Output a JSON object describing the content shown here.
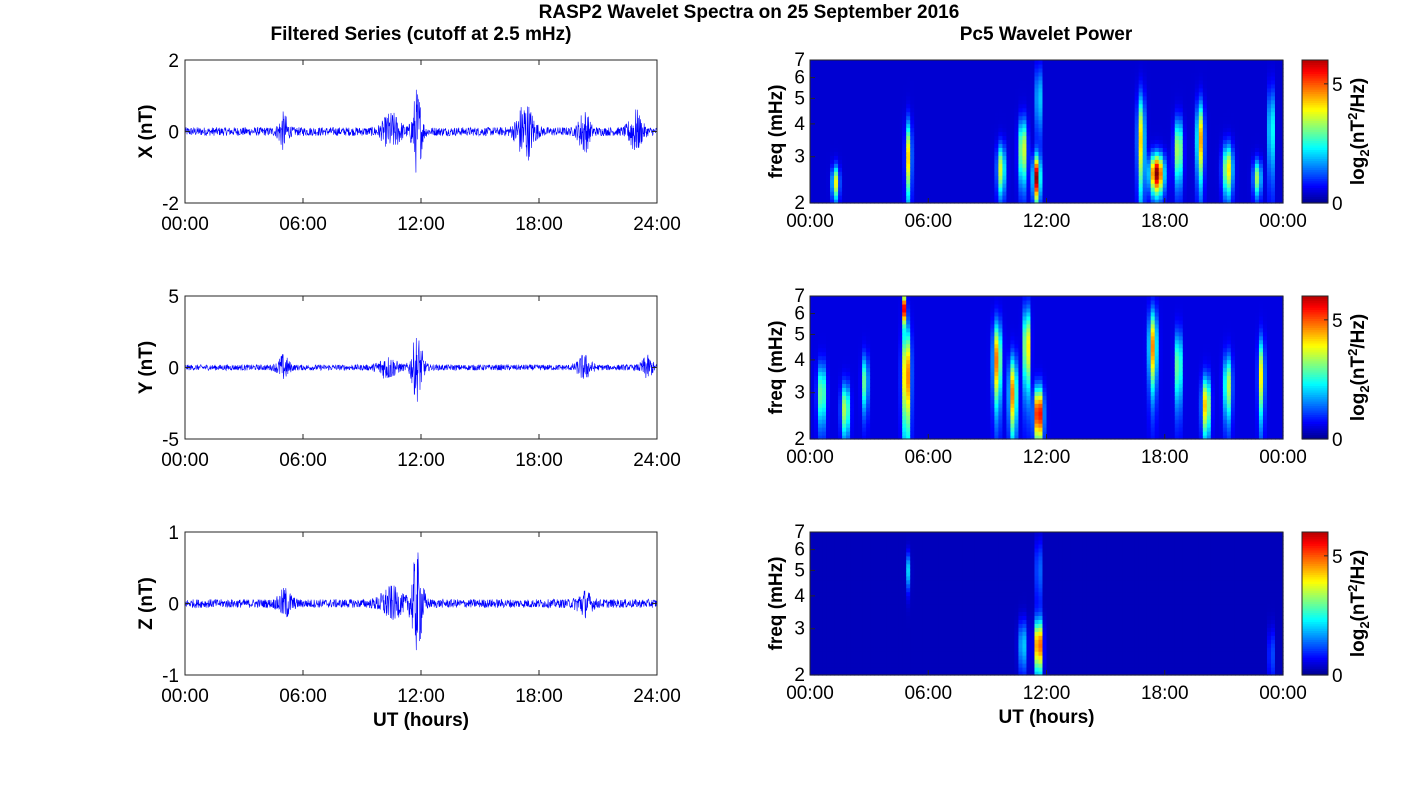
{
  "title": "RASP2 Wavelet Spectra on 25 September 2016",
  "colors": {
    "trace": "#0000ff",
    "frame": "#262626",
    "text": "#000000"
  },
  "chart_data": [
    {
      "type": "line",
      "title": "Filtered Series (cutoff at 2.5 mHz)",
      "ylabel": "X (nT)",
      "xlabel": "",
      "xlim": [
        0,
        24
      ],
      "ylim": [
        -2,
        2
      ],
      "xticks": [
        "00:00",
        "06:00",
        "12:00",
        "18:00",
        "24:00"
      ],
      "yticks": [
        "2",
        "0",
        "-2"
      ],
      "noise_amplitude_nT": 0.12,
      "bursts": [
        {
          "t": 5.0,
          "amp": 0.45,
          "width": 0.25
        },
        {
          "t": 10.5,
          "amp": 0.45,
          "width": 0.5
        },
        {
          "t": 11.8,
          "amp": 1.15,
          "width": 0.25
        },
        {
          "t": 17.3,
          "amp": 0.8,
          "width": 0.45
        },
        {
          "t": 20.3,
          "amp": 0.55,
          "width": 0.3
        },
        {
          "t": 22.9,
          "amp": 0.55,
          "width": 0.35
        }
      ]
    },
    {
      "type": "line",
      "title": "",
      "ylabel": "Y (nT)",
      "xlabel": "",
      "xlim": [
        0,
        24
      ],
      "ylim": [
        -5,
        5
      ],
      "xticks": [
        "00:00",
        "06:00",
        "12:00",
        "18:00",
        "24:00"
      ],
      "yticks": [
        "5",
        "0",
        "-5"
      ],
      "noise_amplitude_nT": 0.2,
      "bursts": [
        {
          "t": 5.0,
          "amp": 0.8,
          "width": 0.3
        },
        {
          "t": 10.3,
          "amp": 0.7,
          "width": 0.5
        },
        {
          "t": 11.8,
          "amp": 2.2,
          "width": 0.3
        },
        {
          "t": 20.3,
          "amp": 0.8,
          "width": 0.35
        },
        {
          "t": 23.5,
          "amp": 0.7,
          "width": 0.3
        }
      ]
    },
    {
      "type": "line",
      "title": "",
      "ylabel": "Z (nT)",
      "xlabel": "UT (hours)",
      "xlim": [
        0,
        24
      ],
      "ylim": [
        -1,
        1
      ],
      "xticks": [
        "00:00",
        "06:00",
        "12:00",
        "18:00",
        "24:00"
      ],
      "yticks": [
        "1",
        "0",
        "-1"
      ],
      "noise_amplitude_nT": 0.06,
      "bursts": [
        {
          "t": 5.1,
          "amp": 0.18,
          "width": 0.35
        },
        {
          "t": 10.5,
          "amp": 0.2,
          "width": 0.6
        },
        {
          "t": 11.8,
          "amp": 0.68,
          "width": 0.3
        },
        {
          "t": 20.3,
          "amp": 0.15,
          "width": 0.4
        }
      ]
    },
    {
      "type": "heatmap",
      "title": "Pc5 Wavelet Power",
      "ylabel": "freq (mHz)",
      "xlabel": "",
      "xlim": [
        0,
        24
      ],
      "ylim": [
        2,
        7
      ],
      "yscale": "log",
      "xticks": [
        "00:00",
        "06:00",
        "12:00",
        "18:00",
        "00:00"
      ],
      "yticks": [
        "7",
        "6",
        "5",
        "4",
        "3",
        "2"
      ],
      "colorbar": {
        "label": "log2(nT2/Hz)",
        "range": [
          0,
          6
        ],
        "ticks": [
          "5",
          "0"
        ],
        "colormap": "jet"
      },
      "background_level": 0.4,
      "blobs": [
        {
          "t": 1.3,
          "f": 2.4,
          "sf": 0.35,
          "st": 0.18,
          "v": 3.5
        },
        {
          "t": 5.0,
          "f": 3.0,
          "sf": 1.0,
          "st": 0.15,
          "v": 3.8
        },
        {
          "t": 9.7,
          "f": 2.7,
          "sf": 0.6,
          "st": 0.2,
          "v": 3.4
        },
        {
          "t": 10.8,
          "f": 3.2,
          "sf": 0.9,
          "st": 0.2,
          "v": 3.8
        },
        {
          "t": 11.5,
          "f": 2.5,
          "sf": 0.5,
          "st": 0.18,
          "v": 5.8
        },
        {
          "t": 11.6,
          "f": 5.0,
          "sf": 1.5,
          "st": 0.1,
          "v": 3.8
        },
        {
          "t": 16.8,
          "f": 3.5,
          "sf": 1.5,
          "st": 0.18,
          "v": 3.8
        },
        {
          "t": 17.6,
          "f": 2.6,
          "sf": 0.45,
          "st": 0.35,
          "v": 6.0
        },
        {
          "t": 18.7,
          "f": 3.2,
          "sf": 0.9,
          "st": 0.2,
          "v": 3.6
        },
        {
          "t": 19.8,
          "f": 3.5,
          "sf": 1.2,
          "st": 0.18,
          "v": 4.2
        },
        {
          "t": 21.2,
          "f": 2.7,
          "sf": 0.6,
          "st": 0.25,
          "v": 3.8
        },
        {
          "t": 22.7,
          "f": 2.5,
          "sf": 0.4,
          "st": 0.2,
          "v": 3.0
        },
        {
          "t": 23.4,
          "f": 3.8,
          "sf": 1.5,
          "st": 0.12,
          "v": 3.4
        }
      ]
    },
    {
      "type": "heatmap",
      "title": "",
      "ylabel": "freq (mHz)",
      "xlabel": "",
      "xlim": [
        0,
        24
      ],
      "ylim": [
        2,
        7
      ],
      "yscale": "log",
      "xticks": [
        "00:00",
        "06:00",
        "12:00",
        "18:00",
        "00:00"
      ],
      "yticks": [
        "7",
        "6",
        "5",
        "4",
        "3",
        "2"
      ],
      "colorbar": {
        "label": "log2(nT2/Hz)",
        "range": [
          0,
          6
        ],
        "ticks": [
          "5",
          "0"
        ],
        "colormap": "jet"
      },
      "background_level": 0.5,
      "blobs": [
        {
          "t": 0.6,
          "f": 3.0,
          "sf": 0.8,
          "st": 0.2,
          "v": 3.0
        },
        {
          "t": 1.8,
          "f": 2.6,
          "sf": 0.6,
          "st": 0.2,
          "v": 3.3
        },
        {
          "t": 2.8,
          "f": 3.3,
          "sf": 0.8,
          "st": 0.15,
          "v": 2.8
        },
        {
          "t": 4.9,
          "f": 3.5,
          "sf": 1.6,
          "st": 0.2,
          "v": 5.0
        },
        {
          "t": 4.8,
          "f": 6.3,
          "sf": 0.8,
          "st": 0.1,
          "v": 5.2
        },
        {
          "t": 9.5,
          "f": 4.0,
          "sf": 1.4,
          "st": 0.2,
          "v": 4.5
        },
        {
          "t": 10.3,
          "f": 3.0,
          "sf": 1.0,
          "st": 0.2,
          "v": 4.3
        },
        {
          "t": 11.0,
          "f": 4.5,
          "sf": 1.6,
          "st": 0.15,
          "v": 4.8
        },
        {
          "t": 11.6,
          "f": 2.5,
          "sf": 0.6,
          "st": 0.22,
          "v": 6.0
        },
        {
          "t": 17.4,
          "f": 4.5,
          "sf": 1.5,
          "st": 0.2,
          "v": 4.2
        },
        {
          "t": 18.7,
          "f": 3.8,
          "sf": 1.2,
          "st": 0.15,
          "v": 3.5
        },
        {
          "t": 20.1,
          "f": 2.7,
          "sf": 0.7,
          "st": 0.2,
          "v": 4.2
        },
        {
          "t": 21.2,
          "f": 3.2,
          "sf": 0.9,
          "st": 0.2,
          "v": 3.2
        },
        {
          "t": 22.9,
          "f": 3.5,
          "sf": 1.2,
          "st": 0.15,
          "v": 3.5
        }
      ]
    },
    {
      "type": "heatmap",
      "title": "",
      "ylabel": "freq (mHz)",
      "xlabel": "UT (hours)",
      "xlim": [
        0,
        24
      ],
      "ylim": [
        2,
        7
      ],
      "yscale": "log",
      "xticks": [
        "00:00",
        "06:00",
        "12:00",
        "18:00",
        "00:00"
      ],
      "yticks": [
        "7",
        "6",
        "5",
        "4",
        "3",
        "2"
      ],
      "colorbar": {
        "label": "log2(nT2/Hz)",
        "range": [
          0,
          6
        ],
        "ticks": [
          "5",
          "0"
        ],
        "colormap": "jet"
      },
      "background_level": 0.25,
      "blobs": [
        {
          "t": 5.0,
          "f": 5.0,
          "sf": 0.8,
          "st": 0.1,
          "v": 1.8
        },
        {
          "t": 10.8,
          "f": 2.6,
          "sf": 0.6,
          "st": 0.2,
          "v": 2.0
        },
        {
          "t": 11.6,
          "f": 2.6,
          "sf": 0.6,
          "st": 0.18,
          "v": 6.0
        },
        {
          "t": 11.6,
          "f": 5.0,
          "sf": 1.5,
          "st": 0.1,
          "v": 2.6
        },
        {
          "t": 23.4,
          "f": 2.4,
          "sf": 0.6,
          "st": 0.1,
          "v": 2.0
        }
      ]
    }
  ]
}
